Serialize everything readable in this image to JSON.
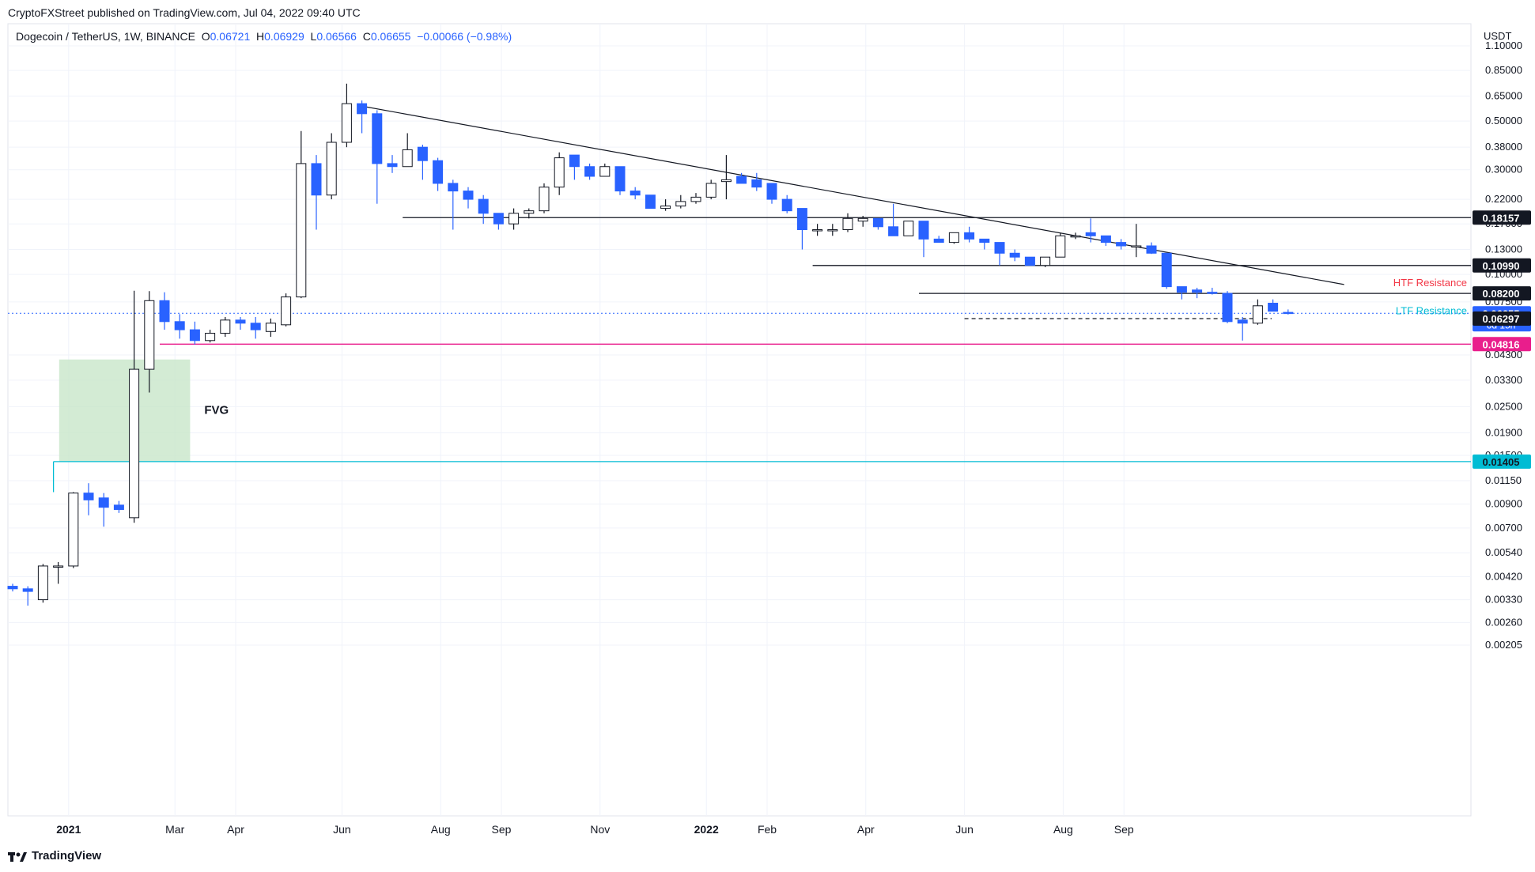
{
  "header": {
    "attribution": "CryptoFXStreet published on TradingView.com, Jul 04, 2022 09:40 UTC",
    "symbol": "Dogecoin / TetherUS, 1W, BINANCE",
    "o_label": "O",
    "o_value": "0.06721",
    "h_label": "H",
    "h_value": "0.06929",
    "l_label": "L",
    "l_value": "0.06566",
    "c_label": "C",
    "c_value": "0.06655",
    "change": "−0.00066 (−0.98%)",
    "unit": "USDT"
  },
  "footer": {
    "brand": "TradingView"
  },
  "colors": {
    "up": "#ffffff",
    "up_border": "#131722",
    "down": "#2962ff",
    "fvg": "#c8e6c9",
    "support": "#e91e8c",
    "cyan": "#00bcd4",
    "htf": "#f23645"
  },
  "chart_data": {
    "type": "candlestick",
    "scale": "log",
    "x_ticks": [
      "2021",
      "Mar",
      "Apr",
      "Jun",
      "Aug",
      "Sep",
      "Nov",
      "2022",
      "Feb",
      "Apr",
      "Jun",
      "Aug",
      "Sep"
    ],
    "y_ticks": [
      "1.10000",
      "0.85000",
      "0.65000",
      "0.50000",
      "0.38000",
      "0.30000",
      "0.22000",
      "0.17000",
      "0.13000",
      "0.10000",
      "0.07500",
      "0.04300",
      "0.03300",
      "0.02500",
      "0.01900",
      "0.01500",
      "0.01150",
      "0.00900",
      "0.00700",
      "0.00540",
      "0.00420",
      "0.00330",
      "0.00260",
      "0.00205"
    ],
    "ohlc": [
      [
        0.0038,
        0.0039,
        0.0036,
        0.0037
      ],
      [
        0.0037,
        0.0038,
        0.0031,
        0.0036
      ],
      [
        0.0033,
        0.0048,
        0.0032,
        0.0047
      ],
      [
        0.0047,
        0.0049,
        0.0039,
        0.0047
      ],
      [
        0.0047,
        0.0102,
        0.0046,
        0.0101
      ],
      [
        0.0101,
        0.0112,
        0.008,
        0.0094
      ],
      [
        0.0096,
        0.0101,
        0.0071,
        0.0087
      ],
      [
        0.0089,
        0.0093,
        0.0082,
        0.0085
      ],
      [
        0.0078,
        0.0843,
        0.0074,
        0.037
      ],
      [
        0.037,
        0.084,
        0.029,
        0.076
      ],
      [
        0.076,
        0.083,
        0.056,
        0.061
      ],
      [
        0.061,
        0.066,
        0.051,
        0.056
      ],
      [
        0.056,
        0.061,
        0.048,
        0.05
      ],
      [
        0.05,
        0.056,
        0.049,
        0.054
      ],
      [
        0.054,
        0.064,
        0.052,
        0.062
      ],
      [
        0.062,
        0.064,
        0.056,
        0.06
      ],
      [
        0.06,
        0.064,
        0.051,
        0.056
      ],
      [
        0.055,
        0.063,
        0.052,
        0.06
      ],
      [
        0.059,
        0.082,
        0.058,
        0.079
      ],
      [
        0.079,
        0.45,
        0.078,
        0.32
      ],
      [
        0.32,
        0.35,
        0.16,
        0.23
      ],
      [
        0.23,
        0.44,
        0.22,
        0.4
      ],
      [
        0.4,
        0.74,
        0.38,
        0.6
      ],
      [
        0.6,
        0.62,
        0.44,
        0.54
      ],
      [
        0.54,
        0.56,
        0.21,
        0.32
      ],
      [
        0.32,
        0.35,
        0.29,
        0.31
      ],
      [
        0.31,
        0.44,
        0.31,
        0.37
      ],
      [
        0.38,
        0.39,
        0.27,
        0.33
      ],
      [
        0.33,
        0.34,
        0.24,
        0.26
      ],
      [
        0.26,
        0.27,
        0.16,
        0.24
      ],
      [
        0.24,
        0.25,
        0.2,
        0.22
      ],
      [
        0.22,
        0.23,
        0.17,
        0.19
      ],
      [
        0.19,
        0.19,
        0.16,
        0.17
      ],
      [
        0.17,
        0.2,
        0.16,
        0.19
      ],
      [
        0.19,
        0.2,
        0.18,
        0.195
      ],
      [
        0.195,
        0.26,
        0.19,
        0.25
      ],
      [
        0.25,
        0.36,
        0.23,
        0.34
      ],
      [
        0.35,
        0.35,
        0.27,
        0.31
      ],
      [
        0.31,
        0.32,
        0.27,
        0.28
      ],
      [
        0.28,
        0.32,
        0.28,
        0.31
      ],
      [
        0.31,
        0.31,
        0.23,
        0.24
      ],
      [
        0.24,
        0.25,
        0.22,
        0.23
      ],
      [
        0.23,
        0.23,
        0.2,
        0.2
      ],
      [
        0.2,
        0.22,
        0.195,
        0.205
      ],
      [
        0.205,
        0.23,
        0.2,
        0.215
      ],
      [
        0.215,
        0.235,
        0.21,
        0.225
      ],
      [
        0.225,
        0.27,
        0.22,
        0.26
      ],
      [
        0.265,
        0.35,
        0.22,
        0.27
      ],
      [
        0.28,
        0.29,
        0.26,
        0.26
      ],
      [
        0.27,
        0.29,
        0.24,
        0.25
      ],
      [
        0.26,
        0.26,
        0.21,
        0.22
      ],
      [
        0.22,
        0.23,
        0.19,
        0.195
      ],
      [
        0.2,
        0.2,
        0.13,
        0.16
      ],
      [
        0.16,
        0.17,
        0.15,
        0.16
      ],
      [
        0.16,
        0.17,
        0.15,
        0.16
      ],
      [
        0.16,
        0.19,
        0.156,
        0.18
      ],
      [
        0.175,
        0.185,
        0.165,
        0.18
      ],
      [
        0.18,
        0.18,
        0.16,
        0.165
      ],
      [
        0.165,
        0.21,
        0.15,
        0.15
      ],
      [
        0.15,
        0.175,
        0.15,
        0.175
      ],
      [
        0.175,
        0.175,
        0.12,
        0.145
      ],
      [
        0.145,
        0.15,
        0.14,
        0.14
      ],
      [
        0.14,
        0.155,
        0.138,
        0.155
      ],
      [
        0.155,
        0.165,
        0.14,
        0.145
      ],
      [
        0.145,
        0.145,
        0.13,
        0.14
      ],
      [
        0.14,
        0.14,
        0.11,
        0.125
      ],
      [
        0.125,
        0.13,
        0.115,
        0.12
      ],
      [
        0.12,
        0.12,
        0.11,
        0.11
      ],
      [
        0.11,
        0.12,
        0.108,
        0.12
      ],
      [
        0.12,
        0.155,
        0.12,
        0.15
      ],
      [
        0.15,
        0.155,
        0.145,
        0.15
      ],
      [
        0.155,
        0.18,
        0.14,
        0.15
      ],
      [
        0.15,
        0.15,
        0.135,
        0.14
      ],
      [
        0.14,
        0.145,
        0.13,
        0.135
      ],
      [
        0.135,
        0.17,
        0.12,
        0.135
      ],
      [
        0.135,
        0.14,
        0.124,
        0.125
      ],
      [
        0.125,
        0.125,
        0.086,
        0.088
      ],
      [
        0.088,
        0.088,
        0.077,
        0.083
      ],
      [
        0.085,
        0.087,
        0.078,
        0.083
      ],
      [
        0.083,
        0.087,
        0.081,
        0.082
      ],
      [
        0.082,
        0.084,
        0.06,
        0.061
      ],
      [
        0.062,
        0.064,
        0.05,
        0.06
      ],
      [
        0.06,
        0.077,
        0.059,
        0.072
      ],
      [
        0.074,
        0.077,
        0.068,
        0.068
      ],
      [
        0.0672,
        0.0693,
        0.0657,
        0.0666
      ]
    ],
    "horizontal_lines": [
      {
        "value": 0.18157,
        "label": "0.18157",
        "style": "dark"
      },
      {
        "value": 0.1099,
        "label": "0.10990",
        "style": "dark"
      },
      {
        "value": 0.082,
        "label": "0.08200",
        "style": "dark"
      },
      {
        "value": 0.06655,
        "label": "0.06655",
        "sub": "6d 15h",
        "style": "blue"
      },
      {
        "value": 0.06297,
        "label": "0.06297",
        "style": "dark"
      },
      {
        "value": 0.04816,
        "label": "0.04816",
        "style": "pink"
      },
      {
        "value": 0.01405,
        "label": "0.01405",
        "style": "cyan"
      }
    ],
    "trendline": {
      "from_week": 23,
      "from_value": 0.59,
      "to_week": 88,
      "to_value": 0.09
    },
    "annotations": {
      "htf": "HTF Resistance",
      "ltf": "LTF Resistance",
      "fvg": "FVG"
    },
    "fvg_zone": {
      "from_week": 4,
      "to_week": 12,
      "low": 0.01405,
      "high": 0.041
    }
  }
}
